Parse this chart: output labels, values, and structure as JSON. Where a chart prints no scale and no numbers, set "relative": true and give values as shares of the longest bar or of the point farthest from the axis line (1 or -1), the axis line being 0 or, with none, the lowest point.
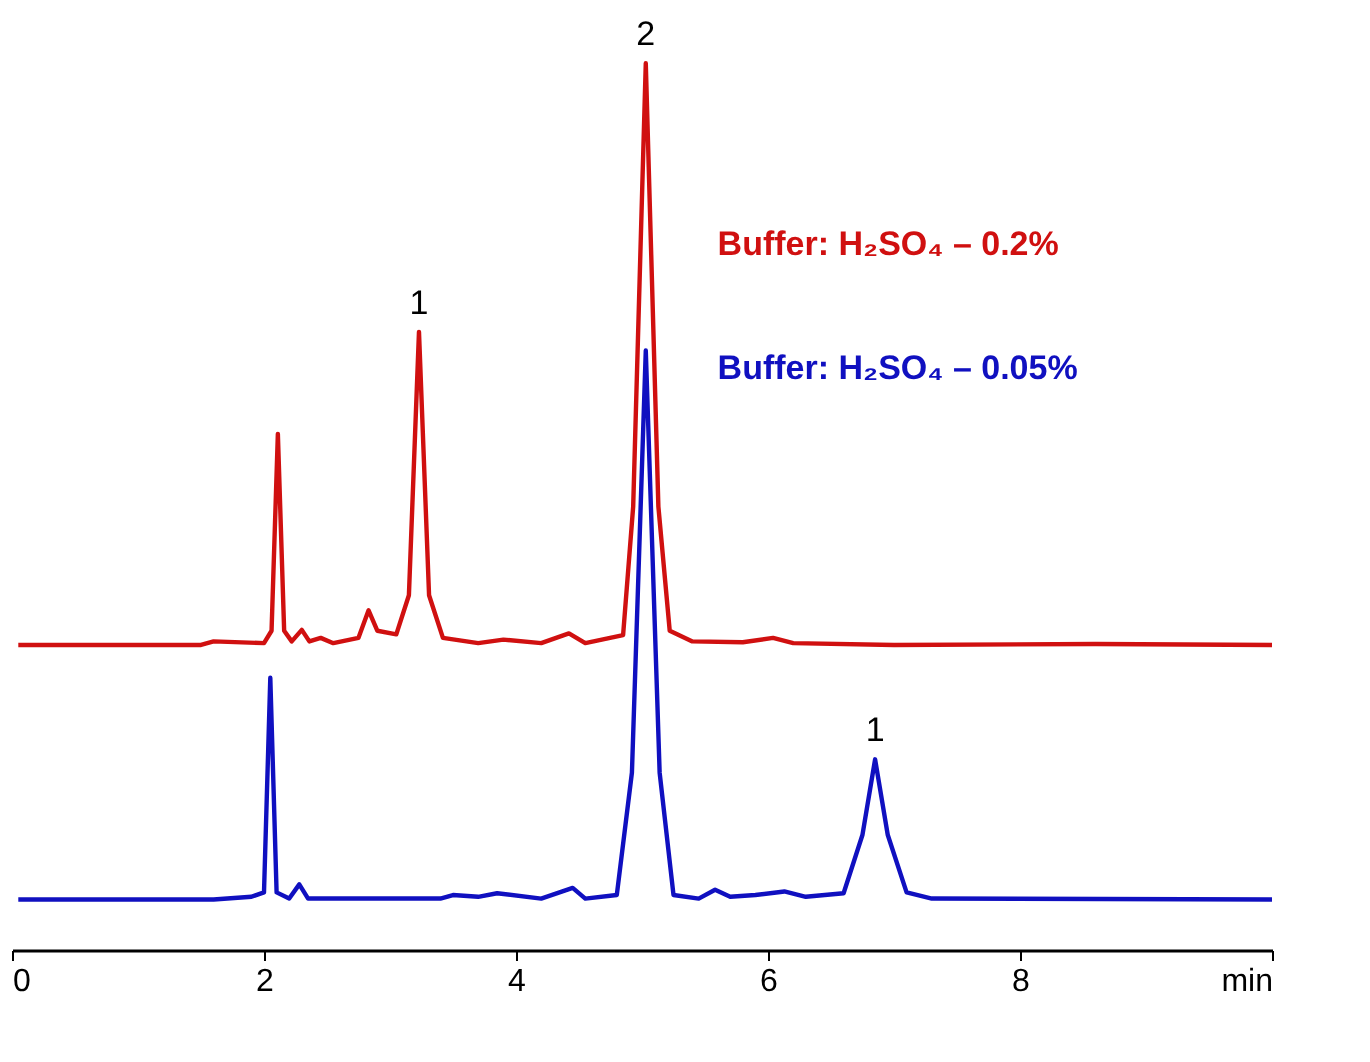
{
  "chart_data": {
    "type": "line",
    "relative": true,
    "legend": "top right",
    "grid": false,
    "marker": "none",
    "line_style": "solid",
    "xlim": [
      0,
      10
    ],
    "xticks": [
      0,
      2,
      4,
      6,
      8,
      {
        "value": 10,
        "label": "min"
      }
    ],
    "series": [
      {
        "name": "Buffer:  H₂SO₄ – 0.2%",
        "color": "#d01010",
        "x": [
          0.05,
          1.5,
          1.6,
          2.0,
          2.06,
          2.11,
          2.16,
          2.22,
          2.3,
          2.36,
          2.45,
          2.55,
          2.75,
          2.83,
          2.9,
          3.05,
          3.15,
          3.23,
          3.31,
          3.42,
          3.7,
          3.9,
          4.2,
          4.42,
          4.55,
          4.85,
          4.93,
          5.03,
          5.13,
          5.22,
          5.4,
          5.8,
          6.04,
          6.2,
          7.0,
          8.6,
          10
        ],
        "values": [
          0.344,
          0.344,
          0.348,
          0.346,
          0.36,
          0.582,
          0.36,
          0.348,
          0.361,
          0.348,
          0.352,
          0.346,
          0.352,
          0.383,
          0.36,
          0.356,
          0.4,
          0.697,
          0.4,
          0.352,
          0.346,
          0.35,
          0.346,
          0.357,
          0.346,
          0.355,
          0.5,
          1.0,
          0.5,
          0.36,
          0.348,
          0.347,
          0.352,
          0.346,
          0.344,
          0.345,
          0.344
        ]
      },
      {
        "name": "Buffer:  H₂SO₄ – 0.05%",
        "color": "#1010c0",
        "x": [
          0.05,
          1.6,
          1.9,
          2.0,
          2.05,
          2.1,
          2.2,
          2.28,
          2.35,
          3.4,
          3.5,
          3.7,
          3.85,
          4.2,
          4.45,
          4.55,
          4.8,
          4.92,
          5.03,
          5.14,
          5.25,
          5.45,
          5.58,
          5.7,
          5.9,
          6.13,
          6.3,
          6.6,
          6.75,
          6.85,
          6.95,
          7.1,
          7.3,
          10
        ],
        "values": [
          0.057,
          0.057,
          0.06,
          0.065,
          0.307,
          0.065,
          0.058,
          0.074,
          0.058,
          0.058,
          0.062,
          0.06,
          0.064,
          0.058,
          0.07,
          0.058,
          0.062,
          0.2,
          0.676,
          0.2,
          0.062,
          0.058,
          0.068,
          0.06,
          0.062,
          0.066,
          0.06,
          0.064,
          0.13,
          0.215,
          0.13,
          0.065,
          0.058,
          0.057
        ]
      }
    ],
    "annotations": [
      {
        "text": "1",
        "x": 3.23,
        "y": 0.697
      },
      {
        "text": "2",
        "x": 5.03,
        "y": 1.0
      },
      {
        "text": "1",
        "x": 6.85,
        "y": 0.215
      }
    ]
  }
}
